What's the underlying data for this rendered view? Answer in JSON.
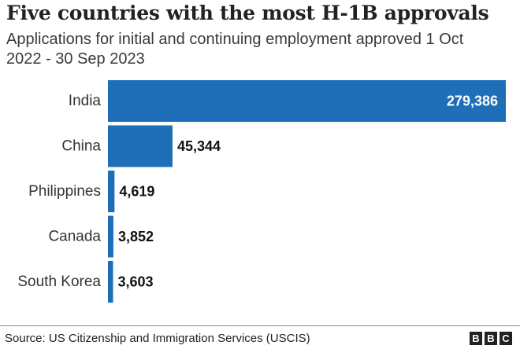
{
  "header": {
    "title": "Five countries with the most H-1B approvals",
    "subtitle": "Applications for initial and continuing employment approved 1 Oct 2022 - 30 Sep 2023"
  },
  "chart_data": {
    "type": "bar",
    "orientation": "horizontal",
    "categories": [
      "India",
      "China",
      "Philippines",
      "Canada",
      "South Korea"
    ],
    "values": [
      279386,
      45344,
      4619,
      3852,
      3603
    ],
    "value_labels": [
      "279,386",
      "45,344",
      "4,619",
      "3,852",
      "3,603"
    ],
    "title": "Five countries with the most H-1B approvals",
    "subtitle": "Applications for initial and continuing employment approved 1 Oct 2022 - 30 Sep 2023",
    "xlabel": "",
    "ylabel": "",
    "xlim": [
      0,
      279386
    ],
    "grid": false,
    "legend": "none",
    "colors": {
      "bar": "#1f6fb8",
      "label_inside": "#ffffff",
      "label_outside": "#111111"
    }
  },
  "footer": {
    "source": "Source: US Citizenship and Immigration Services (USCIS)",
    "logo_letters": [
      "B",
      "B",
      "C"
    ]
  }
}
